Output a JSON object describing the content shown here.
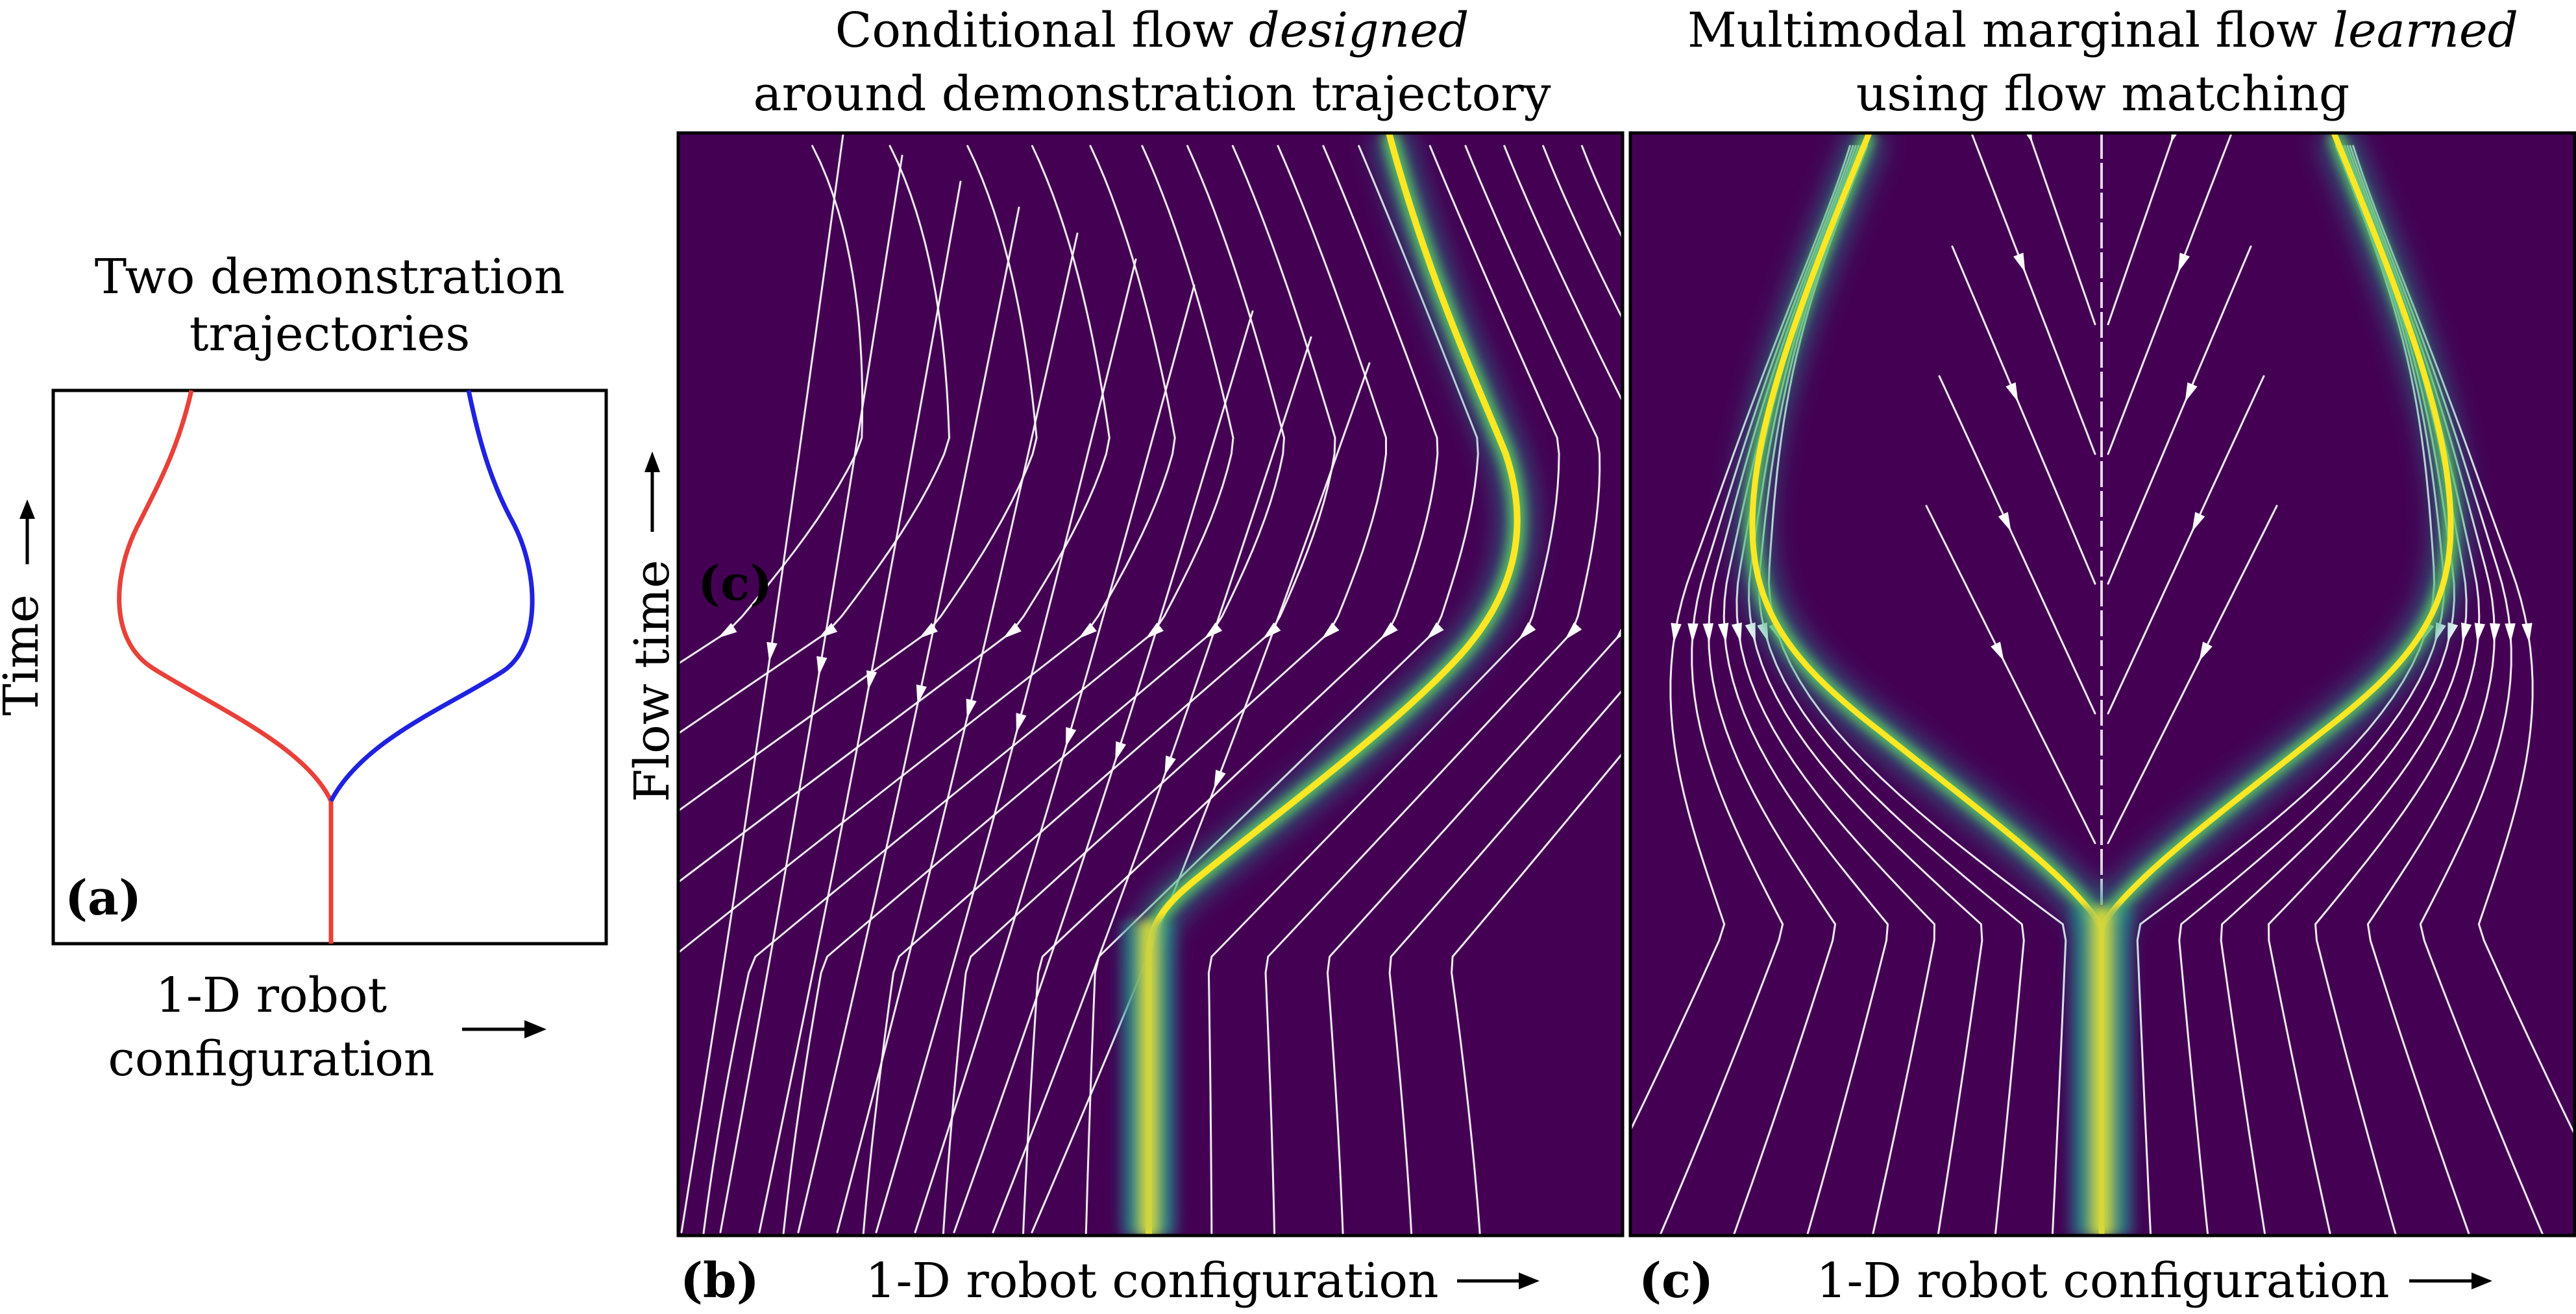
{
  "panel_a": {
    "title_line1": "Two demonstration",
    "title_line2": "trajectories",
    "ylabel": "Time",
    "xlabel_line1": "1-D robot",
    "xlabel_line2": "configuration",
    "tag": "(a)",
    "trajectory_colors": {
      "left": "#e8413a",
      "right": "#1f22e0"
    }
  },
  "panel_b": {
    "title_line1": "Conditional flow ",
    "title_emph": "designed",
    "title_line2": "around demonstration trajectory",
    "ylabel": "Flow time",
    "xlabel": "1-D robot configuration",
    "tag": "(b)",
    "overlay_tag": "(c)"
  },
  "panel_c": {
    "title_line1": "Multimodal marginal flow ",
    "title_emph": "learned",
    "title_line2": "using flow matching",
    "xlabel": "1-D robot configuration",
    "tag": "(c)"
  },
  "colors": {
    "background": "#440154",
    "density_mid": "#21918c",
    "density_high": "#5ec962",
    "density_peak": "#fde725",
    "streamline": "#ffffff"
  }
}
